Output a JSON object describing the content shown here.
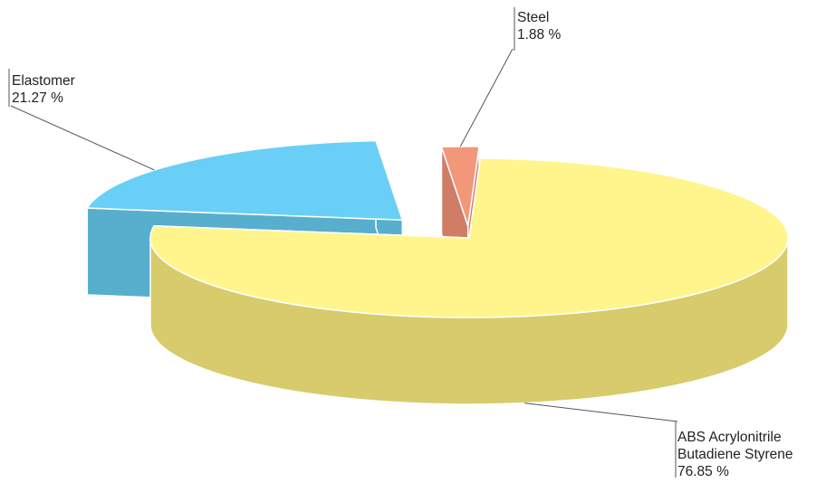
{
  "chart_data": {
    "type": "pie",
    "style": "3d-exploded",
    "title": "",
    "slices": [
      {
        "name": "ABS Acrylonitrile Butadiene Styrene",
        "label_lines": [
          "ABS Acrylonitrile",
          "Butadiene Styrene"
        ],
        "value": 76.85,
        "value_text": "76.85 %",
        "top_color": "#FFF58C",
        "side_color": "#D8CB6C"
      },
      {
        "name": "Elastomer",
        "label_lines": [
          "Elastomer"
        ],
        "value": 21.27,
        "value_text": "21.27 %",
        "top_color": "#69CFF6",
        "side_color": "#58AECD"
      },
      {
        "name": "Steel",
        "label_lines": [
          "Steel"
        ],
        "value": 1.88,
        "value_text": "1.88 %",
        "top_color": "#F3977A",
        "side_color": "#CF7D67"
      }
    ]
  }
}
